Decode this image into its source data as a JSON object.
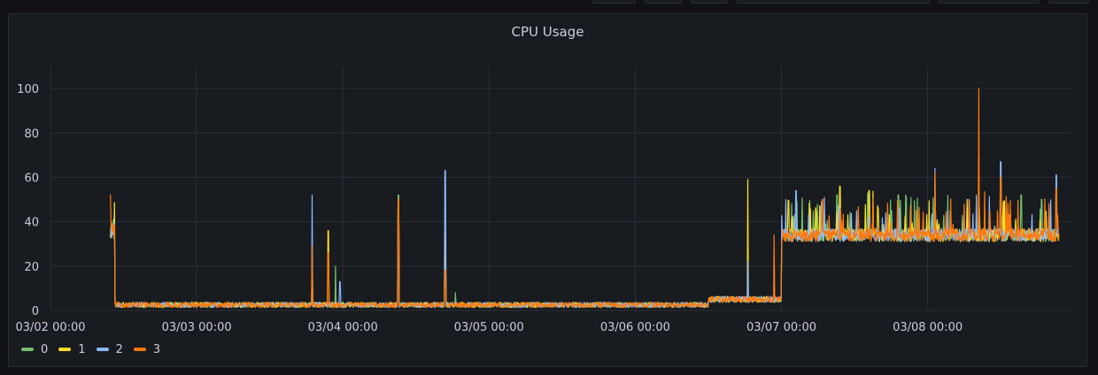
{
  "chart_data": {
    "type": "line",
    "title": "CPU Usage",
    "xlabel": "",
    "ylabel": "",
    "x_tick_labels": [
      "03/02 00:00",
      "03/03 00:00",
      "03/04 00:00",
      "03/05 00:00",
      "03/06 00:00",
      "03/07 00:00",
      "03/08 00:00"
    ],
    "y_ticks": [
      0,
      20,
      40,
      60,
      80,
      100
    ],
    "ylim": [
      0,
      110
    ],
    "x_range_days": [
      0,
      6.9
    ],
    "grid": true,
    "legend_position": "bottom-left",
    "series_shape": {
      "start_day": 0.41,
      "segments": [
        {
          "from": 0.41,
          "to": 0.44,
          "level": 36,
          "noise": 4
        },
        {
          "from": 0.44,
          "to": 4.5,
          "level": 2.5,
          "noise": 1.2
        },
        {
          "from": 4.5,
          "to": 5.0,
          "level": 5,
          "noise": 1.4
        },
        {
          "from": 5.0,
          "to": 6.9,
          "level": 34,
          "noise": 3
        }
      ]
    },
    "series": [
      {
        "name": "0",
        "color": "#73bf69",
        "spikes": [
          [
            0.43,
            41
          ],
          [
            1.79,
            28
          ],
          [
            1.95,
            20
          ],
          [
            2.38,
            52
          ],
          [
            2.7,
            30
          ],
          [
            2.77,
            8
          ],
          [
            5.38,
            52
          ],
          [
            5.8,
            52
          ],
          [
            6.64,
            52
          ],
          [
            6.78,
            50
          ]
        ]
      },
      {
        "name": "1",
        "color": "#fade2a",
        "spikes": [
          [
            0.43,
            38
          ],
          [
            1.79,
            32
          ],
          [
            1.9,
            36
          ],
          [
            2.38,
            50
          ],
          [
            2.7,
            35
          ],
          [
            4.77,
            59
          ],
          [
            5.4,
            56
          ],
          [
            5.6,
            54
          ],
          [
            6.27,
            50
          ],
          [
            6.5,
            60
          ]
        ]
      },
      {
        "name": "2",
        "color": "#8ab8ff",
        "spikes": [
          [
            0.43,
            37
          ],
          [
            1.79,
            52
          ],
          [
            1.98,
            13
          ],
          [
            2.38,
            48
          ],
          [
            2.7,
            63
          ],
          [
            4.77,
            22
          ],
          [
            5.1,
            54
          ],
          [
            6.05,
            64
          ],
          [
            6.5,
            67
          ],
          [
            6.88,
            61
          ]
        ]
      },
      {
        "name": "3",
        "color": "#ff780a",
        "spikes": [
          [
            0.43,
            38
          ],
          [
            1.79,
            29
          ],
          [
            1.9,
            26
          ],
          [
            2.38,
            50
          ],
          [
            2.7,
            18
          ],
          [
            4.95,
            34
          ],
          [
            5.28,
            50
          ],
          [
            6.05,
            62
          ],
          [
            6.35,
            100
          ],
          [
            6.5,
            60
          ],
          [
            6.88,
            55
          ]
        ]
      }
    ]
  }
}
